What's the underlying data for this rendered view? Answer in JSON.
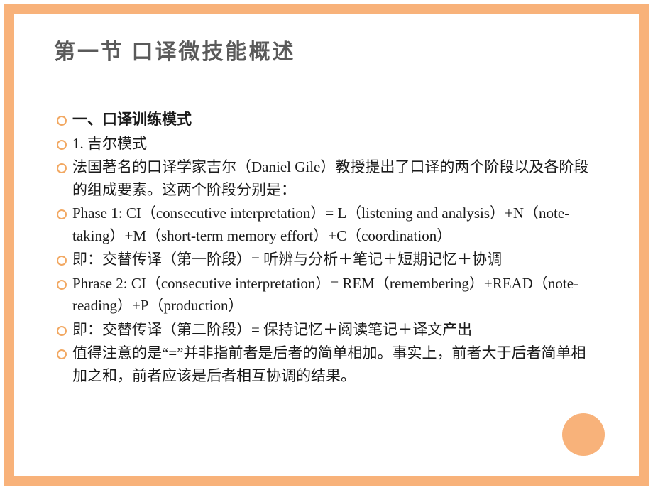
{
  "slide": {
    "title": "第一节 口译微技能概述",
    "border_color": "#f8b27a",
    "bullet_color": "#f2a862",
    "circle_color": "#f8b27a",
    "items": [
      {
        "text": "一、口译训练模式",
        "bold": true
      },
      {
        "text": "1. 吉尔模式",
        "bold": false
      },
      {
        "text": "法国著名的口译学家吉尔（Daniel Gile）教授提出了口译的两个阶段以及各阶段的组成要素。这两个阶段分别是：",
        "bold": false
      },
      {
        "text": "Phase 1: CI（consecutive interpretation）= L（listening and analysis）+N（note-taking）+M（short-term memory effort）+C（coordination）",
        "bold": false
      },
      {
        "text": "即：交替传译（第一阶段）= 听辨与分析＋笔记＋短期记忆＋协调",
        "bold": false
      },
      {
        "text": "Phrase 2: CI（consecutive interpretation）= REM（remembering）+READ（note-reading）+P（production）",
        "bold": false
      },
      {
        "text": "即：交替传译（第二阶段）= 保持记忆＋阅读笔记＋译文产出",
        "bold": false
      },
      {
        "text": "值得注意的是“=”并非指前者是后者的简单相加。事实上，前者大于后者简单相加之和，前者应该是后者相互协调的结果。",
        "bold": false
      }
    ]
  }
}
